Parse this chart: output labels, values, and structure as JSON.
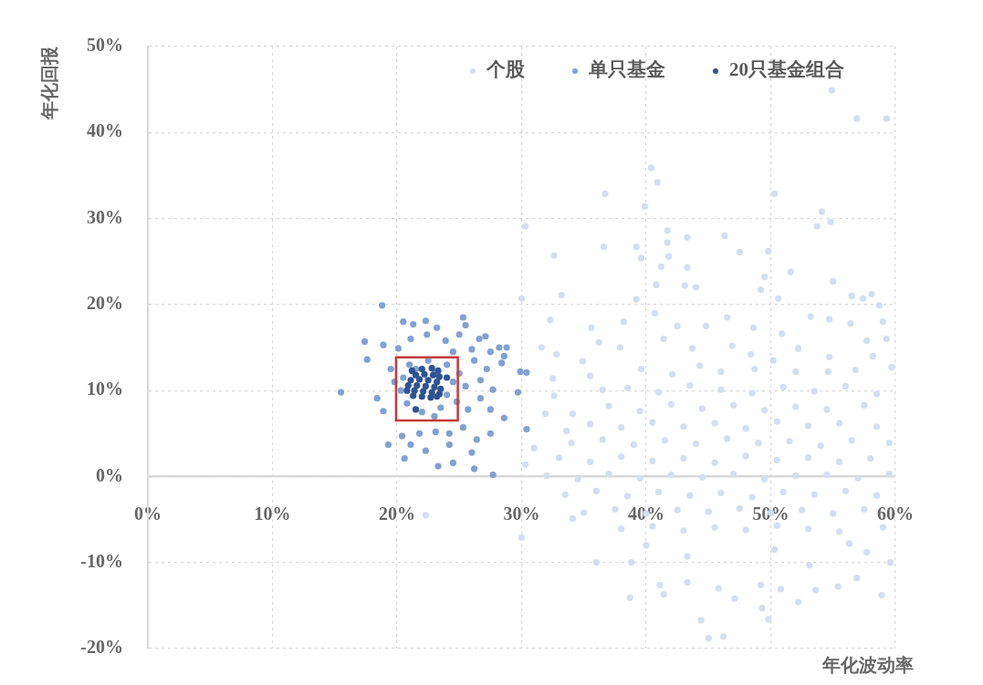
{
  "chart_data": {
    "type": "scatter",
    "xlabel": "年化波动率",
    "ylabel": "年化回报",
    "xlim": [
      0,
      60
    ],
    "ylim": [
      -20,
      50
    ],
    "xticks": [
      {
        "value": 0,
        "label": "0%"
      },
      {
        "value": 10,
        "label": "10%"
      },
      {
        "value": 20,
        "label": "20%"
      },
      {
        "value": 30,
        "label": "30%"
      },
      {
        "value": 40,
        "label": "40%"
      },
      {
        "value": 50,
        "label": "50%"
      },
      {
        "value": 60,
        "label": "60%"
      }
    ],
    "yticks": [
      {
        "value": -20,
        "label": "-20%"
      },
      {
        "value": -10,
        "label": "-10%"
      },
      {
        "value": 0,
        "label": "0%"
      },
      {
        "value": 10,
        "label": "10%"
      },
      {
        "value": 20,
        "label": "20%"
      },
      {
        "value": 30,
        "label": "30%"
      },
      {
        "value": 40,
        "label": "40%"
      },
      {
        "value": 50,
        "label": "50%"
      }
    ],
    "grid": true,
    "legend": "top right",
    "marker": "circle",
    "series": [
      {
        "name": "个股",
        "color": "#d3deef",
        "x": [
          54.9,
          56.9,
          59.3,
          40.4,
          40.9,
          36.7,
          50.3,
          39.9,
          54.1,
          53.7,
          54.8,
          30.3,
          41.7,
          41.7,
          43.3,
          46.3,
          36.6,
          39.2,
          32.6,
          47.5,
          49.8,
          41.8,
          39.6,
          41.2,
          43.3,
          51.6,
          49.5,
          55.0,
          40.8,
          43.1,
          44.0,
          33.2,
          30.0,
          49.2,
          56.5,
          57.4,
          58.1,
          58.7,
          59.0,
          50.6,
          39.2,
          32.3,
          31.6,
          35.6,
          36.2,
          38.2,
          40.7,
          42.5,
          44.8,
          46.5,
          48.6,
          50.9,
          53.2,
          54.7,
          56.4,
          57.7,
          59.3,
          32.8,
          34.9,
          37.9,
          41.4,
          43.7,
          46.9,
          48.4,
          52.2,
          54.7,
          56.8,
          59.7,
          32.5,
          35.5,
          39.6,
          42.1,
          44.3,
          46.0,
          48.7,
          50.2,
          52.0,
          54.6,
          58.2,
          30.3,
          31.0,
          31.9,
          32.6,
          34.1,
          33.6,
          36.5,
          22.3,
          30.0,
          34.1,
          36.0,
          38.7,
          38.8,
          41.1,
          41.4,
          43.3,
          44.4,
          45.0,
          46.2,
          45.8,
          47.1,
          49.2,
          49.3,
          49.8,
          50.8,
          52.2,
          53.6,
          55.4,
          56.9,
          58.9,
          59.6,
          56.3,
          57.7,
          53.1,
          43.3,
          50.3,
          40.0,
          38.5,
          41,
          43.5,
          46,
          48.5,
          51,
          53.5,
          56,
          58.5,
          37,
          39.5,
          42,
          44.5,
          47,
          49.5,
          52,
          54.5,
          57.5,
          35.5,
          38,
          40.5,
          43,
          45.5,
          48,
          50.5,
          53,
          55.5,
          58.5,
          34,
          36.5,
          39,
          41.5,
          44,
          46.5,
          49,
          51.5,
          54,
          56.5,
          59.5,
          33,
          35.5,
          38,
          40.5,
          43,
          45.5,
          48,
          50.5,
          53,
          55.5,
          58,
          32,
          34.5,
          37,
          39.5,
          42,
          44.5,
          47,
          49.5,
          52,
          54.5,
          57,
          59.5,
          33.5,
          36,
          38.5,
          41,
          43.5,
          46,
          48.5,
          51,
          53.5,
          56,
          58.5,
          35,
          37.5,
          40,
          42.5,
          45,
          47.5,
          50,
          52.5,
          55,
          57.5,
          38,
          40.5,
          43,
          45.5,
          48,
          50.5,
          53,
          55.5,
          59
        ],
        "values": [
          44.9,
          41.6,
          41.6,
          35.9,
          34.2,
          32.9,
          32.9,
          31.4,
          30.8,
          29.1,
          29.6,
          29.1,
          28.6,
          27.2,
          27.8,
          28.0,
          26.7,
          26.7,
          25.7,
          26.1,
          26.2,
          25.6,
          25.4,
          24.4,
          24.3,
          23.8,
          23.2,
          22.7,
          22.3,
          22.2,
          22.0,
          21.1,
          20.7,
          21.7,
          21.0,
          20.7,
          21.2,
          19.9,
          18.0,
          20.7,
          20.6,
          18.2,
          15.0,
          17.3,
          15.6,
          18.0,
          19.0,
          17.5,
          17.5,
          18.5,
          17.3,
          16.6,
          18.6,
          18.3,
          17.8,
          15.8,
          16.0,
          14.2,
          13.4,
          15.0,
          16.0,
          14.9,
          15.2,
          14.2,
          14.9,
          13.9,
          12.4,
          12.7,
          11.4,
          11.7,
          12.5,
          11.9,
          12.9,
          12.2,
          12.5,
          13.5,
          12.2,
          12.2,
          14.0,
          1.4,
          3.3,
          7.3,
          9.4,
          7.3,
          5.3,
          10.1,
          -4.5,
          -7.1,
          -4.9,
          -10.0,
          -14.1,
          -10.0,
          -12.6,
          -13.7,
          -12.3,
          -16.7,
          -18.8,
          -18.6,
          -13.0,
          -14.2,
          -12.6,
          -15.3,
          -16.6,
          -13.1,
          -14.6,
          -13.2,
          -12.8,
          -11.8,
          -13.8,
          -10.0,
          -7.8,
          -8.8,
          -10.3,
          -9.3,
          -8.5,
          -8.0,
          10.3,
          9.8,
          10.6,
          10.1,
          9.7,
          10.4,
          9.9,
          10.5,
          9.6,
          8.2,
          7.6,
          8.4,
          7.9,
          8.3,
          7.7,
          8.1,
          7.8,
          8.3,
          6.1,
          5.7,
          6.3,
          5.8,
          6.2,
          5.6,
          6.4,
          5.9,
          6.2,
          5.8,
          3.9,
          4.3,
          3.7,
          4.2,
          3.8,
          4.4,
          3.9,
          4.1,
          3.6,
          4.2,
          3.9,
          2.2,
          1.7,
          2.3,
          1.8,
          2.1,
          1.6,
          2.4,
          1.9,
          2.2,
          1.7,
          2.1,
          0.1,
          -0.3,
          0.3,
          -0.2,
          0.2,
          -0.1,
          0.3,
          -0.3,
          0.1,
          0.2,
          -0.2,
          0.3,
          -2.1,
          -1.7,
          -2.3,
          -1.8,
          -2.2,
          -1.9,
          -2.4,
          -1.8,
          -2.1,
          -1.7,
          -2.2,
          -4.2,
          -3.8,
          -4.3,
          -3.9,
          -4.1,
          -3.7,
          -4.2,
          -3.9,
          -4.3,
          -3.8,
          -6.1,
          -5.8,
          -6.3,
          -5.9,
          -6.2,
          -5.7,
          -6.1,
          -6.4,
          -5.9
        ]
      },
      {
        "name": "单只基金",
        "color": "#7fa1d3",
        "x": [
          18.8,
          15.5,
          17.4,
          17.6,
          18.9,
          18.4,
          18.9,
          20.5,
          21.3,
          22.3,
          21.1,
          22.4,
          23.2,
          20.1,
          25.3,
          25.5,
          23.9,
          25.0,
          26.6,
          27.1,
          28.2,
          28.8,
          28.6,
          27.5,
          26.2,
          27.2,
          28.4,
          29.9,
          30.4,
          29.7,
          27.7,
          26.7,
          26.7,
          27.5,
          28.6,
          30.4,
          25.7,
          25.3,
          24.2,
          23.1,
          21.8,
          20.4,
          19.3,
          21.1,
          22.3,
          24.2,
          26.4,
          27.5,
          20.6,
          23.3,
          24.5,
          26.0,
          26.2,
          27.7,
          21.0,
          22.5,
          24.0,
          20.5,
          24.5,
          25.0,
          20.8,
          22.0,
          23.5,
          24.8,
          21.5,
          23.0,
          24.0,
          20.3,
          25.5,
          23.0,
          19.8,
          19.5,
          24.5,
          26.0
        ],
        "values": [
          19.9,
          9.8,
          15.7,
          13.6,
          15.3,
          9.1,
          7.6,
          18.0,
          17.7,
          18.1,
          16.0,
          16.5,
          17.3,
          14.9,
          18.5,
          17.6,
          15.8,
          16.5,
          16.0,
          16.3,
          15.0,
          15.0,
          14.0,
          14.5,
          13.5,
          12.5,
          13.2,
          12.2,
          12.1,
          9.8,
          10.1,
          11.2,
          9.1,
          7.8,
          6.8,
          5.5,
          7.8,
          5.7,
          5.0,
          5.2,
          5.0,
          4.7,
          3.7,
          3.7,
          3.0,
          3.7,
          4.3,
          5.0,
          2.1,
          1.2,
          1.6,
          2.8,
          0.9,
          0.2,
          13.0,
          13.5,
          13.0,
          11.5,
          11.0,
          12.0,
          8.5,
          7.5,
          8.0,
          8.7,
          12.5,
          12.0,
          9.5,
          10.0,
          10.5,
          7.0,
          11.0,
          12.5,
          14.5,
          14.8
        ]
      },
      {
        "name": "20只基金组合",
        "color": "#2e5395",
        "x": [
          21.2,
          22.0,
          22.8,
          23.3,
          21.5,
          22.2,
          22.9,
          23.4,
          21.1,
          21.8,
          22.5,
          23.2,
          20.9,
          21.6,
          22.3,
          23.0,
          23.5,
          20.8,
          21.4,
          22.1,
          22.8,
          23.4,
          21.3,
          22.0,
          22.7,
          23.2,
          24.0,
          21.5
        ],
        "values": [
          12.3,
          12.5,
          12.6,
          12.3,
          11.8,
          11.9,
          11.8,
          11.6,
          11.2,
          11.3,
          11.2,
          11.0,
          10.6,
          10.6,
          10.5,
          10.4,
          10.2,
          10.0,
          10.0,
          9.9,
          9.8,
          9.6,
          9.4,
          9.3,
          9.2,
          9.3,
          11.5,
          7.8
        ]
      }
    ]
  }
}
